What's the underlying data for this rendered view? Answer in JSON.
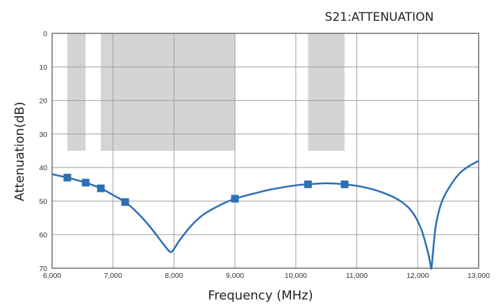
{
  "chart_data": {
    "type": "line",
    "title": "S21:ATTENUATION",
    "xlabel": "Frequency (MHz)",
    "ylabel": "Attenuation(dB)",
    "xlim": [
      6000,
      13000
    ],
    "ylim": [
      0,
      70
    ],
    "y_inverted": true,
    "grid": true,
    "x_ticks": [
      6000,
      7000,
      8000,
      9000,
      10000,
      11000,
      12000,
      13000
    ],
    "x_tick_labels": [
      "6,000",
      "7,000",
      "8,000",
      "9,000",
      "10,000",
      "11,000",
      "12,000",
      "13,000"
    ],
    "y_ticks": [
      0,
      10,
      20,
      30,
      40,
      50,
      60,
      70
    ],
    "y_tick_labels": [
      "0",
      "10",
      "20",
      "30",
      "40",
      "50",
      "60",
      "70"
    ],
    "colors": {
      "line": "#2e6fb5",
      "marker": "#2e6fb5",
      "mask": "#d4d4d4",
      "grid": "#9e9e9e",
      "frame": "#4a4a4a"
    },
    "mask_regions": [
      {
        "x": [
          6250,
          6550
        ],
        "y": [
          0,
          35
        ]
      },
      {
        "x": [
          6800,
          9000
        ],
        "y": [
          0,
          35
        ]
      },
      {
        "x": [
          10200,
          10800
        ],
        "y": [
          0,
          35
        ]
      }
    ],
    "series": [
      {
        "x": [
          6000,
          6250,
          6550,
          6800,
          7000,
          7200,
          7400,
          7600,
          7800,
          7900,
          7950,
          8000,
          8100,
          8300,
          8500,
          8800,
          9000,
          9300,
          9600,
          10000,
          10200,
          10500,
          10800,
          11100,
          11400,
          11700,
          11900,
          12050,
          12150,
          12200,
          12220,
          12230,
          12250,
          12300,
          12400,
          12550,
          12700,
          12850,
          13000
        ],
        "values": [
          42,
          43,
          44.5,
          46.2,
          48.2,
          50.3,
          53.5,
          57.5,
          62.2,
          64.5,
          65.2,
          64.3,
          61.5,
          57,
          53.8,
          50.8,
          49.3,
          47.8,
          46.5,
          45.3,
          45,
          44.7,
          45,
          45.8,
          47.3,
          49.8,
          53,
          58,
          64,
          68,
          70,
          69.5,
          65.5,
          57,
          50,
          45,
          41.5,
          39.5,
          38
        ],
        "markers": [
          {
            "x": 6250,
            "y": 43
          },
          {
            "x": 6550,
            "y": 44.5
          },
          {
            "x": 6800,
            "y": 46.2
          },
          {
            "x": 7200,
            "y": 50.3
          },
          {
            "x": 9000,
            "y": 49.3
          },
          {
            "x": 10200,
            "y": 45
          },
          {
            "x": 10800,
            "y": 45
          }
        ]
      }
    ]
  }
}
